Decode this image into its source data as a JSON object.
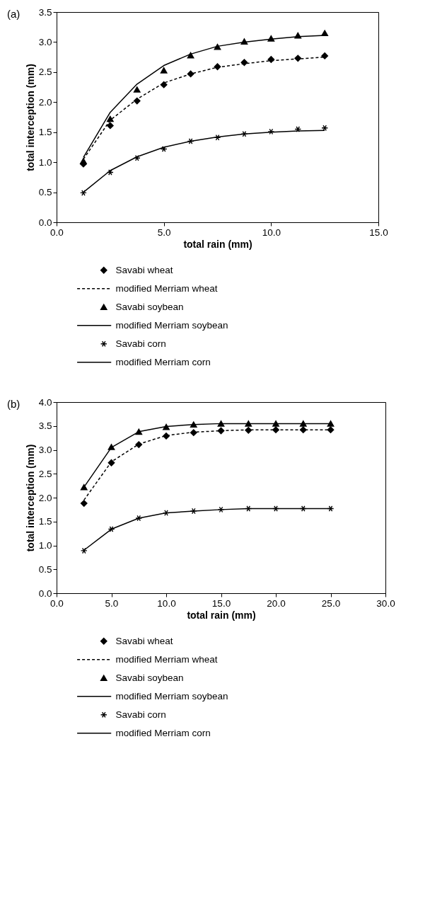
{
  "chart_data": [
    {
      "type": "line",
      "title": "(a)",
      "xlabel": "total rain (mm)",
      "ylabel": "total interception (mm)",
      "x": [
        1.25,
        2.5,
        3.75,
        5,
        6.25,
        7.5,
        8.75,
        10,
        11.25,
        12.5
      ],
      "xlim": [
        0,
        15
      ],
      "xticks": [
        {
          "value": 0,
          "label": "0.0"
        },
        {
          "value": 5,
          "label": "5.0"
        },
        {
          "value": 10,
          "label": "10.0"
        },
        {
          "value": 15,
          "label": "15.0"
        }
      ],
      "ylim": [
        0,
        3.5
      ],
      "yticks": [
        {
          "value": 0,
          "label": "0.0"
        },
        {
          "value": 0.5,
          "label": "0.5"
        },
        {
          "value": 1,
          "label": "1.0"
        },
        {
          "value": 1.5,
          "label": "1.5"
        },
        {
          "value": 2,
          "label": "2.0"
        },
        {
          "value": 2.5,
          "label": "2.5"
        },
        {
          "value": 3,
          "label": "3.0"
        },
        {
          "value": 3.5,
          "label": "3.5"
        }
      ],
      "grid": false,
      "legend": "bottom",
      "series": [
        {
          "name": "Savabi wheat",
          "type": "scatter",
          "marker": "diamond",
          "color": "#000000",
          "values": [
            0.97,
            1.61,
            2.02,
            2.29,
            2.47,
            2.59,
            2.66,
            2.71,
            2.73,
            2.77
          ]
        },
        {
          "name": "modified Merriam wheat",
          "type": "line",
          "line_style": "dashed",
          "color": "#000000",
          "values": [
            1.05,
            1.7,
            2.05,
            2.32,
            2.47,
            2.58,
            2.64,
            2.69,
            2.72,
            2.75
          ]
        },
        {
          "name": "Savabi soybean",
          "type": "scatter",
          "marker": "triangle",
          "color": "#000000",
          "values": [
            1.02,
            1.72,
            2.21,
            2.53,
            2.78,
            2.92,
            3.01,
            3.06,
            3.11,
            3.15
          ]
        },
        {
          "name": "modified Merriam soybean",
          "type": "line",
          "line_style": "solid",
          "color": "#000000",
          "values": [
            1.08,
            1.83,
            2.3,
            2.61,
            2.8,
            2.93,
            3.0,
            3.05,
            3.09,
            3.11
          ]
        },
        {
          "name": "Savabi corn",
          "type": "scatter",
          "marker": "cross",
          "color": "#000000",
          "values": [
            0.49,
            0.83,
            1.07,
            1.22,
            1.35,
            1.41,
            1.47,
            1.51,
            1.55,
            1.57
          ]
        },
        {
          "name": "modified Merriam corn",
          "type": "line",
          "line_style": "solid",
          "color": "#000000",
          "values": [
            0.5,
            0.86,
            1.09,
            1.25,
            1.35,
            1.42,
            1.47,
            1.5,
            1.52,
            1.53
          ]
        }
      ]
    },
    {
      "type": "line",
      "title": "(b)",
      "xlabel": "total rain (mm)",
      "ylabel": "total interception (mm)",
      "x": [
        2.5,
        5,
        7.5,
        10,
        12.5,
        15,
        17.5,
        20,
        22.5,
        25
      ],
      "xlim": [
        0,
        30
      ],
      "xticks": [
        {
          "value": 0,
          "label": "0.0"
        },
        {
          "value": 5,
          "label": "5.0"
        },
        {
          "value": 10,
          "label": "10.0"
        },
        {
          "value": 15,
          "label": "15.0"
        },
        {
          "value": 20,
          "label": "20.0"
        },
        {
          "value": 25,
          "label": "25.0"
        },
        {
          "value": 30,
          "label": "30.0"
        }
      ],
      "ylim": [
        0,
        4
      ],
      "yticks": [
        {
          "value": 0,
          "label": "0.0"
        },
        {
          "value": 0.5,
          "label": "0.5"
        },
        {
          "value": 1,
          "label": "1.0"
        },
        {
          "value": 1.5,
          "label": "1.5"
        },
        {
          "value": 2,
          "label": "2.0"
        },
        {
          "value": 2.5,
          "label": "2.5"
        },
        {
          "value": 3,
          "label": "3.0"
        },
        {
          "value": 3.5,
          "label": "3.5"
        },
        {
          "value": 4,
          "label": "4.0"
        }
      ],
      "grid": false,
      "legend": "bottom",
      "series": [
        {
          "name": "Savabi wheat",
          "type": "scatter",
          "marker": "diamond",
          "color": "#000000",
          "values": [
            1.88,
            2.73,
            3.11,
            3.29,
            3.36,
            3.4,
            3.41,
            3.42,
            3.42,
            3.42
          ]
        },
        {
          "name": "modified Merriam wheat",
          "type": "line",
          "line_style": "dashed",
          "color": "#000000",
          "values": [
            1.95,
            2.75,
            3.12,
            3.3,
            3.37,
            3.4,
            3.42,
            3.42,
            3.42,
            3.42
          ]
        },
        {
          "name": "Savabi soybean",
          "type": "scatter",
          "marker": "triangle",
          "color": "#000000",
          "values": [
            2.22,
            3.06,
            3.38,
            3.48,
            3.53,
            3.55,
            3.55,
            3.55,
            3.55,
            3.55
          ]
        },
        {
          "name": "modified Merriam soybean",
          "type": "line",
          "line_style": "solid",
          "color": "#000000",
          "values": [
            2.22,
            3.05,
            3.38,
            3.49,
            3.53,
            3.55,
            3.55,
            3.55,
            3.55,
            3.55
          ]
        },
        {
          "name": "Savabi corn",
          "type": "scatter",
          "marker": "cross",
          "color": "#000000",
          "values": [
            0.89,
            1.34,
            1.57,
            1.68,
            1.72,
            1.75,
            1.77,
            1.77,
            1.77,
            1.77
          ]
        },
        {
          "name": "modified Merriam corn",
          "type": "line",
          "line_style": "solid",
          "color": "#000000",
          "values": [
            0.9,
            1.34,
            1.57,
            1.68,
            1.72,
            1.75,
            1.77,
            1.77,
            1.77,
            1.77
          ]
        }
      ]
    }
  ]
}
